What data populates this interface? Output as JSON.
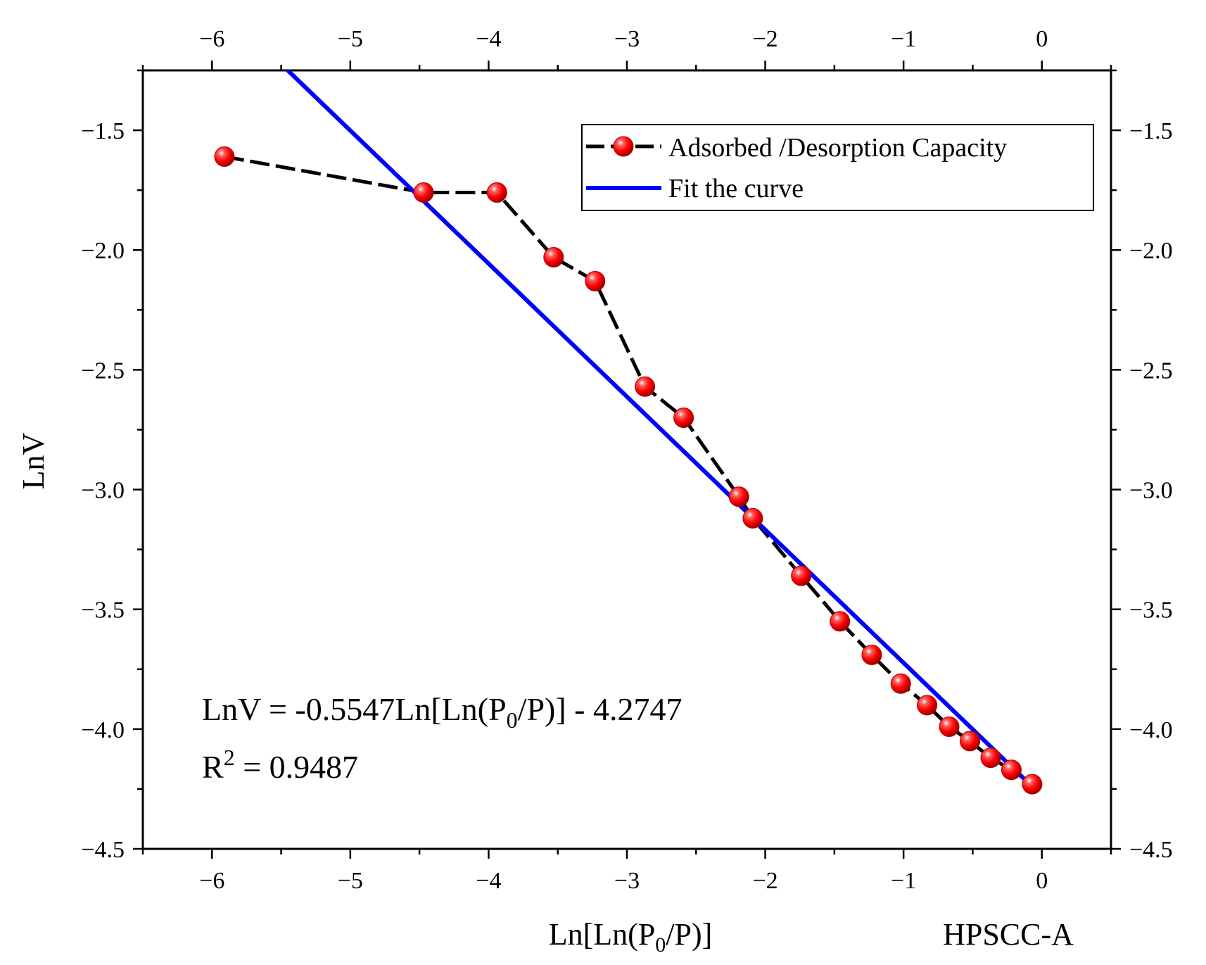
{
  "chart_data": {
    "type": "scatter",
    "title": "",
    "sample_label": "HPSCC-A",
    "xlabel": {
      "prefix": "Ln[Ln(P",
      "sub": "0",
      "suffix": "/P)]"
    },
    "ylabel": "LnV",
    "xlim": [
      -6.5,
      0.5
    ],
    "ylim": [
      -4.5,
      -1.25
    ],
    "x_ticks": [
      -6,
      -5,
      -4,
      -3,
      -2,
      -1,
      0
    ],
    "x_tick_labels": [
      "−6",
      "−5",
      "−4",
      "−3",
      "−2",
      "−1",
      "0"
    ],
    "y_ticks": [
      -1.5,
      -2.0,
      -2.5,
      -3.0,
      -3.5,
      -4.0,
      -4.5
    ],
    "y_tick_labels_left": [
      "−1.5",
      "−2.0",
      "−2.5",
      "−3.0",
      "−3.5",
      "−4.0",
      "−4.5"
    ],
    "y_tick_labels_right": [
      "−1.5",
      "−2.0",
      "−2.5",
      "−3.0",
      "−3.5",
      "−4.0",
      "−4.5"
    ],
    "grid": false,
    "legend_position": "top-right",
    "series": [
      {
        "name": "Adsorbed /Desorption Capacity",
        "kind": "line-markers",
        "color": "#000000",
        "marker_color": "#ff0000",
        "x": [
          -5.91,
          -4.47,
          -3.94,
          -3.53,
          -3.23,
          -2.87,
          -2.59,
          -2.19,
          -2.09,
          -1.74,
          -1.46,
          -1.23,
          -1.02,
          -0.83,
          -0.67,
          -0.52,
          -0.37,
          -0.22,
          -0.07
        ],
        "y": [
          -1.61,
          -1.76,
          -1.76,
          -2.03,
          -2.13,
          -2.57,
          -2.7,
          -3.03,
          -3.12,
          -3.36,
          -3.55,
          -3.69,
          -3.81,
          -3.9,
          -3.99,
          -4.05,
          -4.12,
          -4.17,
          -4.23
        ]
      },
      {
        "name": "Fit the curve",
        "kind": "line",
        "color": "#0000ff",
        "x": [
          -5.47,
          -0.07
        ],
        "y": [
          -1.24,
          -4.24
        ]
      }
    ],
    "annotations": {
      "equation": {
        "lhs": "LnV = -0.5547Ln[Ln(P",
        "sub": "0",
        "rhs": "/P)] - 4.2747"
      },
      "r_squared": {
        "base": "R",
        "sup": "2",
        "rhs": " = 0.9487"
      }
    }
  }
}
